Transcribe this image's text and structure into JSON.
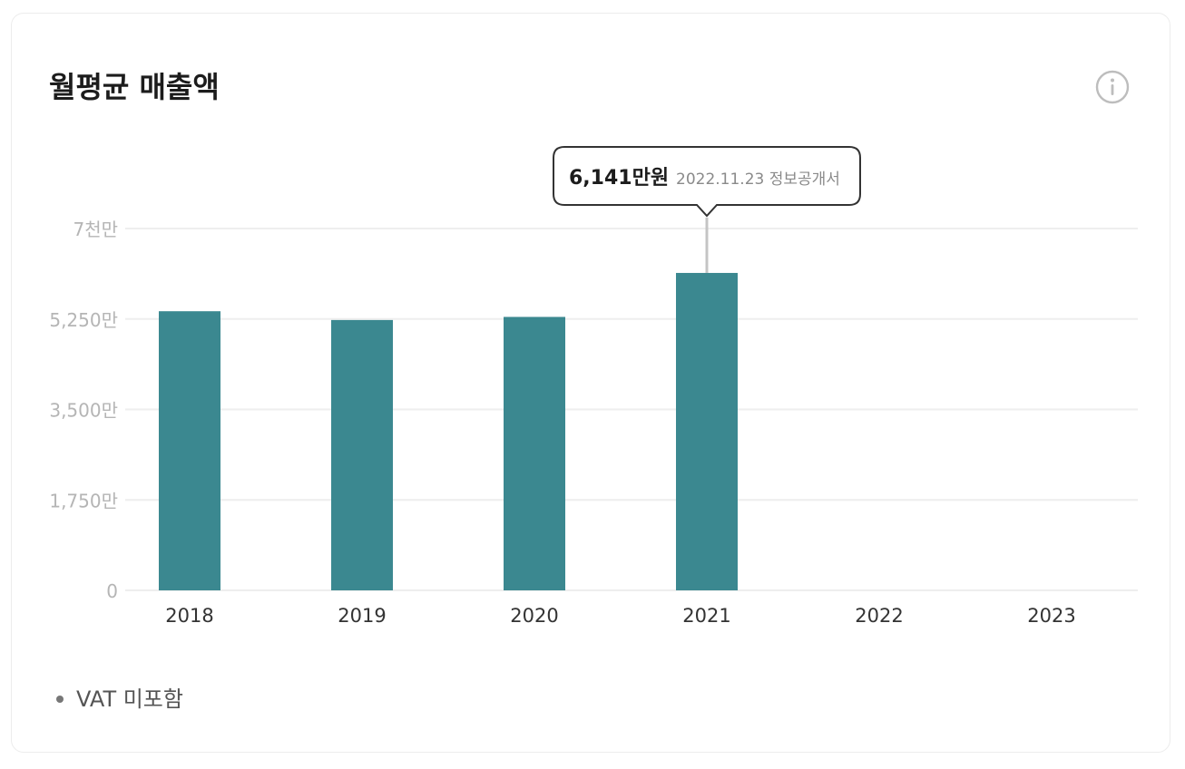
{
  "card": {
    "title": "월평균 매출액",
    "info_icon": "info-circle-icon",
    "note": "VAT 미포함"
  },
  "tooltip": {
    "value_label": "6,141만원",
    "source_label": "2022.11.23 정보공개서",
    "category": "2021"
  },
  "colors": {
    "bar": "#3b8890",
    "grid": "#eeeeee",
    "tick": "#b5b5b5",
    "xtick": "#333333",
    "tooltip_border": "#333333"
  },
  "chart_data": {
    "type": "bar",
    "title": "월평균 매출액",
    "xlabel": "",
    "ylabel": "",
    "unit": "만원",
    "categories": [
      "2018",
      "2019",
      "2020",
      "2021",
      "2022",
      "2023"
    ],
    "values": [
      5400,
      5230,
      5290,
      6141,
      null,
      null
    ],
    "ylim": [
      0,
      7000
    ],
    "yticks": [
      0,
      1750,
      3500,
      5250,
      7000
    ],
    "ytick_labels": [
      "0",
      "1,750만",
      "3,500만",
      "5,250만",
      "7천만"
    ],
    "grid": true,
    "legend": "none"
  }
}
